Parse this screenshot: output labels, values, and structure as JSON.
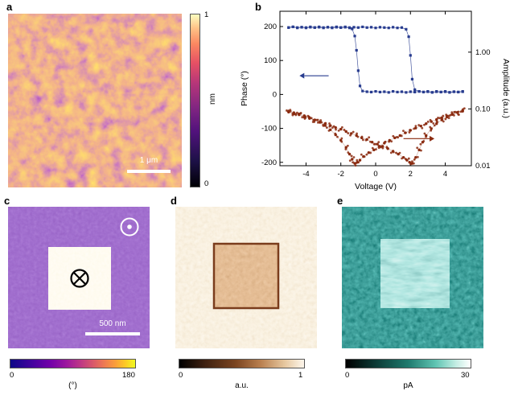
{
  "figure": {
    "panels": {
      "a": {
        "label": "a",
        "scale_bar": "1 μm",
        "colorbar": {
          "max": "1",
          "min": "0",
          "unit": "nm"
        }
      },
      "b": {
        "label": "b"
      },
      "c": {
        "label": "c",
        "scale_bar": "500 nm",
        "colorbar": {
          "min": "0",
          "max": "180",
          "unit": "(°)"
        }
      },
      "d": {
        "label": "d",
        "colorbar": {
          "min": "0",
          "max": "1",
          "unit": "a.u."
        }
      },
      "e": {
        "label": "e",
        "colorbar": {
          "min": "0",
          "max": "30",
          "unit": "pA"
        }
      }
    }
  },
  "chart_data": {
    "type": "scatter",
    "title": "",
    "xlabel": "Voltage (V)",
    "ylabel_left": "Phase (°)",
    "ylabel_right": "Amplitude (a.u.)",
    "xlim": [
      -5.5,
      5.5
    ],
    "x_ticks": [
      -4,
      -2,
      0,
      2,
      4
    ],
    "left_ticks": [
      200,
      100,
      0,
      -100,
      -200
    ],
    "left_lim": [
      -210,
      245
    ],
    "right_ticks": [
      1.0,
      0.1,
      0.01
    ],
    "right_ticklabels": [
      "1.00",
      "0.10",
      "0.01"
    ],
    "right_log_lim": [
      -2,
      0.72
    ],
    "grid": false,
    "legend": "none",
    "series": [
      {
        "name": "phase-forward",
        "axis": "left",
        "marker": "square",
        "color": "#283c8f",
        "points": [
          [
            -5,
            197
          ],
          [
            -4.75,
            199
          ],
          [
            -4.5,
            196
          ],
          [
            -4.25,
            198
          ],
          [
            -4,
            197
          ],
          [
            -3.75,
            199
          ],
          [
            -3.5,
            197
          ],
          [
            -3.25,
            198
          ],
          [
            -3,
            196
          ],
          [
            -2.75,
            198
          ],
          [
            -2.5,
            197
          ],
          [
            -2.25,
            199
          ],
          [
            -2,
            197
          ],
          [
            -1.75,
            198
          ],
          [
            -1.5,
            196
          ],
          [
            -1.25,
            198
          ],
          [
            -1,
            197
          ],
          [
            -0.75,
            199
          ],
          [
            -0.5,
            197
          ],
          [
            -0.25,
            198
          ],
          [
            0,
            196
          ],
          [
            0.25,
            198
          ],
          [
            0.5,
            197
          ],
          [
            0.75,
            196
          ],
          [
            1,
            198
          ],
          [
            1.25,
            196
          ],
          [
            1.5,
            197
          ],
          [
            1.75,
            192
          ],
          [
            1.9,
            170
          ],
          [
            2,
            115
          ],
          [
            2.1,
            45
          ],
          [
            2.25,
            14
          ],
          [
            2.5,
            9
          ],
          [
            2.75,
            7
          ],
          [
            3,
            9
          ],
          [
            3.25,
            6
          ],
          [
            3.5,
            8
          ],
          [
            3.75,
            7
          ],
          [
            4,
            9
          ],
          [
            4.25,
            6
          ],
          [
            4.5,
            8
          ],
          [
            4.75,
            7
          ],
          [
            5,
            8
          ]
        ]
      },
      {
        "name": "phase-reverse",
        "axis": "left",
        "marker": "square",
        "color": "#283c8f",
        "points": [
          [
            5,
            9
          ],
          [
            4.75,
            7
          ],
          [
            4.5,
            8
          ],
          [
            4.25,
            6
          ],
          [
            4,
            8
          ],
          [
            3.75,
            7
          ],
          [
            3.5,
            9
          ],
          [
            3.25,
            6
          ],
          [
            3,
            8
          ],
          [
            2.75,
            7
          ],
          [
            2.5,
            9
          ],
          [
            2.25,
            7
          ],
          [
            2,
            8
          ],
          [
            1.75,
            6
          ],
          [
            1.5,
            8
          ],
          [
            1.25,
            7
          ],
          [
            1,
            9
          ],
          [
            0.75,
            6
          ],
          [
            0.5,
            8
          ],
          [
            0.25,
            7
          ],
          [
            0,
            9
          ],
          [
            -0.25,
            7
          ],
          [
            -0.5,
            8
          ],
          [
            -0.75,
            10
          ],
          [
            -0.9,
            25
          ],
          [
            -1,
            70
          ],
          [
            -1.1,
            130
          ],
          [
            -1.2,
            172
          ],
          [
            -1.35,
            193
          ],
          [
            -1.5,
            197
          ],
          [
            -1.75,
            199
          ],
          [
            -2,
            197
          ],
          [
            -2.25,
            198
          ],
          [
            -2.5,
            196
          ],
          [
            -2.75,
            198
          ],
          [
            -3,
            197
          ],
          [
            -3.25,
            199
          ],
          [
            -3.5,
            197
          ],
          [
            -3.75,
            198
          ],
          [
            -4,
            196
          ],
          [
            -4.25,
            198
          ],
          [
            -4.5,
            197
          ],
          [
            -4.75,
            199
          ],
          [
            -5,
            197
          ]
        ]
      },
      {
        "name": "amplitude-forward",
        "axis": "right",
        "marker": "circle",
        "color": "#8a2a0f",
        "points": [
          [
            -5,
            0.088
          ],
          [
            -4.7,
            0.082
          ],
          [
            -4.4,
            0.079
          ],
          [
            -4.1,
            0.072
          ],
          [
            -3.8,
            0.068
          ],
          [
            -3.5,
            0.064
          ],
          [
            -3.2,
            0.059
          ],
          [
            -2.9,
            0.055
          ],
          [
            -2.6,
            0.051
          ],
          [
            -2.3,
            0.047
          ],
          [
            -2,
            0.044
          ],
          [
            -1.7,
            0.04
          ],
          [
            -1.4,
            0.037
          ],
          [
            -1.1,
            0.034
          ],
          [
            -0.8,
            0.031
          ],
          [
            -0.5,
            0.029
          ],
          [
            -0.2,
            0.026
          ],
          [
            0.1,
            0.024
          ],
          [
            0.4,
            0.022
          ],
          [
            0.7,
            0.02
          ],
          [
            1,
            0.018
          ],
          [
            1.3,
            0.016
          ],
          [
            1.6,
            0.014
          ],
          [
            1.8,
            0.0125
          ],
          [
            1.95,
            0.0115
          ],
          [
            2.1,
            0.011
          ],
          [
            2.3,
            0.014
          ],
          [
            2.5,
            0.019
          ],
          [
            2.7,
            0.026
          ],
          [
            2.9,
            0.034
          ],
          [
            3.2,
            0.045
          ],
          [
            3.5,
            0.055
          ],
          [
            3.8,
            0.064
          ],
          [
            4.1,
            0.072
          ],
          [
            4.4,
            0.08
          ],
          [
            4.7,
            0.087
          ],
          [
            5,
            0.094
          ]
        ]
      },
      {
        "name": "amplitude-reverse",
        "axis": "right",
        "marker": "circle",
        "color": "#8a2a0f",
        "points": [
          [
            5,
            0.091
          ],
          [
            4.7,
            0.086
          ],
          [
            4.4,
            0.081
          ],
          [
            4.1,
            0.075
          ],
          [
            3.8,
            0.07
          ],
          [
            3.5,
            0.065
          ],
          [
            3.2,
            0.06
          ],
          [
            2.9,
            0.055
          ],
          [
            2.6,
            0.05
          ],
          [
            2.3,
            0.046
          ],
          [
            2,
            0.042
          ],
          [
            1.7,
            0.038
          ],
          [
            1.4,
            0.034
          ],
          [
            1.1,
            0.031
          ],
          [
            0.8,
            0.028
          ],
          [
            0.5,
            0.025
          ],
          [
            0.2,
            0.022
          ],
          [
            -0.1,
            0.019
          ],
          [
            -0.4,
            0.017
          ],
          [
            -0.7,
            0.0145
          ],
          [
            -0.9,
            0.0125
          ],
          [
            -1.05,
            0.0115
          ],
          [
            -1.2,
            0.011
          ],
          [
            -1.35,
            0.013
          ],
          [
            -1.5,
            0.016
          ],
          [
            -1.7,
            0.021
          ],
          [
            -2,
            0.028
          ],
          [
            -2.3,
            0.035
          ],
          [
            -2.6,
            0.043
          ],
          [
            -2.9,
            0.051
          ],
          [
            -3.2,
            0.058
          ],
          [
            -3.5,
            0.064
          ],
          [
            -3.8,
            0.07
          ],
          [
            -4.1,
            0.076
          ],
          [
            -4.4,
            0.081
          ],
          [
            -4.7,
            0.086
          ],
          [
            -5,
            0.09
          ]
        ]
      }
    ],
    "annotations": [
      {
        "type": "arrow",
        "dir": "left",
        "axis": "left",
        "y": 55,
        "x_from": -2.7,
        "x_to": -4.1,
        "color": "#283c8f"
      },
      {
        "type": "arrow",
        "dir": "right",
        "axis": "right",
        "y": 0.03,
        "x_from": 1.6,
        "x_to": 3.1,
        "color": "#8a2a0f"
      }
    ]
  },
  "colors": {
    "phase_marker": "#283c8f",
    "amplitude_marker": "#8a2a0f"
  }
}
